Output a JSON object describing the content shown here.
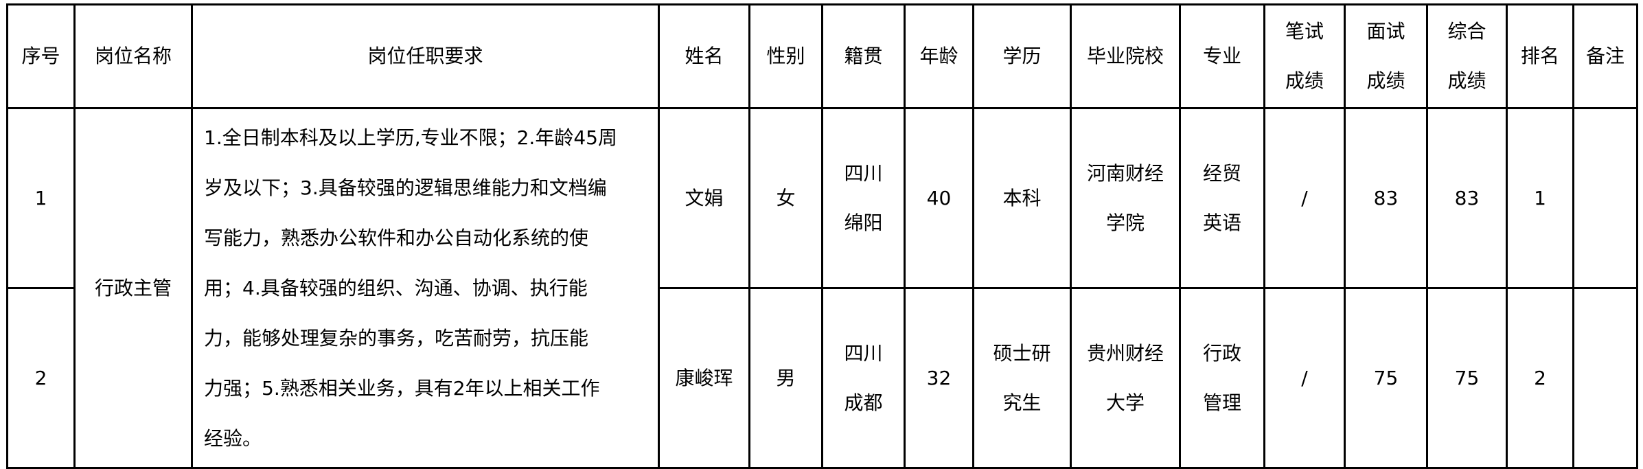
{
  "headers": {
    "index": "序号",
    "position": "岗位名称",
    "requirements": "岗位任职要求",
    "name": "姓名",
    "gender": "性别",
    "origin": "籍贯",
    "age": "年龄",
    "education": "学历",
    "school": "毕业院校",
    "major": "专业",
    "written": [
      "笔试",
      "成绩"
    ],
    "interview": [
      "面试",
      "成绩"
    ],
    "total": [
      "综合",
      "成绩"
    ],
    "rank": "排名",
    "remark": "备注"
  },
  "position": "行政主管",
  "requirements_lines": [
    "1.全日制本科及以上学历,专业不限；2.年龄45周",
    "岁及以下；3.具备较强的逻辑思维能力和文档编",
    "写能力，熟悉办公软件和办公自动化系统的使",
    "用；4.具备较强的组织、沟通、协调、执行能",
    "力，能够处理复杂的事务，吃苦耐劳，抗压能",
    "力强；5.熟悉相关业务，具有2年以上相关工作",
    "经验。"
  ],
  "rows": [
    {
      "index": "1",
      "name": "文娟",
      "gender": "女",
      "origin": [
        "四川",
        "绵阳"
      ],
      "age": "40",
      "education": [
        "本科"
      ],
      "school": [
        "河南财经",
        "学院"
      ],
      "major": [
        "经贸",
        "英语"
      ],
      "written": "/",
      "interview": "83",
      "total": "83",
      "rank": "1",
      "remark": ""
    },
    {
      "index": "2",
      "name": "康峻珲",
      "gender": "男",
      "origin": [
        "四川",
        "成都"
      ],
      "age": "32",
      "education": [
        "硕士研",
        "究生"
      ],
      "school": [
        "贵州财经",
        "大学"
      ],
      "major": [
        "行政",
        "管理"
      ],
      "written": "/",
      "interview": "75",
      "total": "75",
      "rank": "2",
      "remark": ""
    }
  ]
}
